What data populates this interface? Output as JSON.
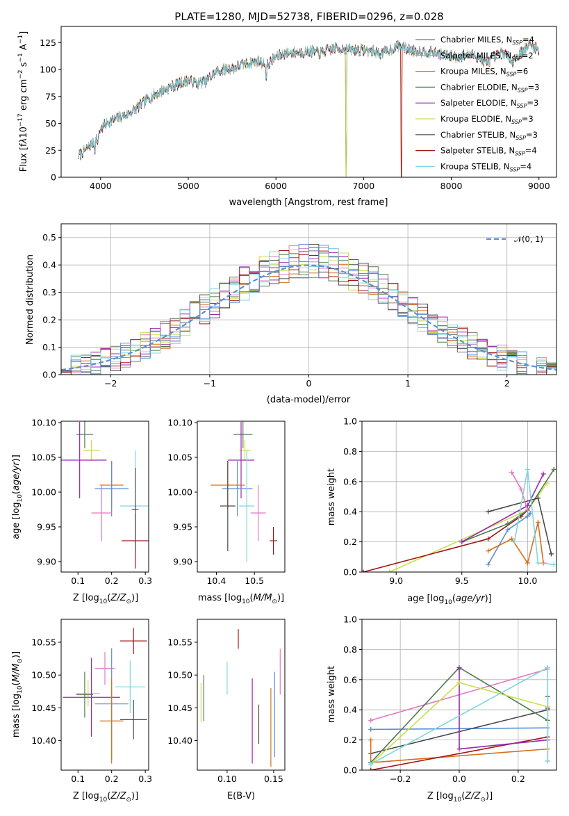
{
  "figure": {
    "title": "PLATE=1280, MJD=52738, FIBERID=0296, z=0.028"
  },
  "chart_data": [
    {
      "id": "spectrum",
      "type": "line",
      "xlabel": "wavelength [Angstrom, rest frame]",
      "ylabel": "Flux [f_λ10^-17 erg cm^-2 s^-1 A^-1]",
      "xlim": [
        3550,
        9200
      ],
      "ylim": [
        0,
        140
      ],
      "xticks": [
        4000,
        5000,
        6000,
        7000,
        8000,
        9000
      ],
      "yticks": [
        0,
        25,
        50,
        75,
        100,
        125
      ],
      "grid": false,
      "legend_position": "top-right",
      "continuum": [
        [
          3750,
          20
        ],
        [
          3850,
          27
        ],
        [
          3950,
          35
        ],
        [
          4000,
          45
        ],
        [
          4100,
          52
        ],
        [
          4200,
          55
        ],
        [
          4300,
          58
        ],
        [
          4400,
          63
        ],
        [
          4500,
          70
        ],
        [
          4600,
          76
        ],
        [
          4700,
          80
        ],
        [
          4800,
          84
        ],
        [
          4900,
          87
        ],
        [
          5000,
          90
        ],
        [
          5100,
          87
        ],
        [
          5200,
          89
        ],
        [
          5300,
          97
        ],
        [
          5400,
          100
        ],
        [
          5500,
          101
        ],
        [
          5600,
          104
        ],
        [
          5700,
          106
        ],
        [
          5800,
          108
        ],
        [
          5900,
          104
        ],
        [
          6000,
          112
        ],
        [
          6100,
          115
        ],
        [
          6200,
          116
        ],
        [
          6300,
          116
        ],
        [
          6400,
          117
        ],
        [
          6500,
          115
        ],
        [
          6600,
          118
        ],
        [
          6700,
          120
        ],
        [
          6800,
          119
        ],
        [
          6900,
          118
        ],
        [
          7000,
          118
        ],
        [
          7100,
          117
        ],
        [
          7200,
          115
        ],
        [
          7300,
          118
        ],
        [
          7400,
          122
        ],
        [
          7500,
          119
        ],
        [
          7600,
          117
        ],
        [
          7700,
          117
        ],
        [
          7800,
          116
        ],
        [
          7900,
          114
        ],
        [
          8000,
          112
        ],
        [
          8100,
          112
        ],
        [
          8200,
          114
        ],
        [
          8300,
          112
        ],
        [
          8400,
          106
        ],
        [
          8500,
          112
        ],
        [
          8600,
          116
        ],
        [
          8700,
          108
        ],
        [
          8800,
          116
        ],
        [
          8900,
          123
        ],
        [
          9000,
          118
        ]
      ],
      "series": [
        {
          "name": "Chabrier MILES, N_SSP=4",
          "color": "#767676",
          "drop_at": null
        },
        {
          "name": "Salpeter MILES, N_SSP=2",
          "color": "#e377c2",
          "drop_at": null
        },
        {
          "name": "Kroupa MILES, N_SSP=6",
          "color": "#d6701a",
          "drop_at": 7430
        },
        {
          "name": "Chabrier ELODIE, N_SSP=3",
          "color": "#4f7a4f",
          "drop_at": 6800
        },
        {
          "name": "Salpeter ELODIE, N_SSP=3",
          "color": "#9b27b0",
          "drop_at": 6800
        },
        {
          "name": "Kroupa ELODIE, N_SSP=3",
          "color": "#c8e04a",
          "drop_at": 6800
        },
        {
          "name": "Chabrier STELIB, N_SSP=3",
          "color": "#4a4a4a",
          "drop_at": null
        },
        {
          "name": "Salpeter STELIB, N_SSP=4",
          "color": "#a31616",
          "drop_at": 7430
        },
        {
          "name": "Kroupa STELIB, N_SSP=4",
          "color": "#7fd6de",
          "drop_at": null
        }
      ]
    },
    {
      "id": "residual-histogram",
      "type": "histogram",
      "xlabel": "(data-model)/error",
      "ylabel": "Normed distribution",
      "xlim": [
        -2.5,
        2.5
      ],
      "ylim": [
        0,
        0.55
      ],
      "xticks": [
        -2,
        -1,
        0,
        1,
        2
      ],
      "yticks": [
        0.0,
        0.1,
        0.2,
        0.3,
        0.4,
        0.5
      ],
      "grid": true,
      "legend_position": "top-right",
      "reference": {
        "name": "𝒩(0, 1)",
        "color": "#5b8fd6"
      },
      "bin_width": 0.1,
      "colors": [
        "#767676",
        "#e377c2",
        "#d6701a",
        "#4f7a4f",
        "#9b27b0",
        "#c8e04a",
        "#4a4a4a",
        "#a31616",
        "#7fd6de",
        "#5b8fd6"
      ]
    },
    {
      "id": "age-vs-Z",
      "type": "errorbar",
      "xlabel": "Z [log10(Z/Z⊙)]",
      "ylabel": "age [log10(age/yr)]",
      "xlim": [
        0.05,
        0.31
      ],
      "ylim": [
        9.885,
        10.102
      ],
      "xticks": [
        0.1,
        0.2,
        0.3
      ],
      "yticks": [
        9.9,
        9.95,
        10.0,
        10.05,
        10.1
      ],
      "points": [
        {
          "x": 0.12,
          "y": 10.083,
          "xe": 0.025,
          "ye": 0.02,
          "color": "#4f7a4f"
        },
        {
          "x": 0.14,
          "y": 10.06,
          "xe": 0.025,
          "ye": 0.015,
          "color": "#c8e04a"
        },
        {
          "x": 0.105,
          "y": 10.046,
          "xe": 0.08,
          "ye": 0.055,
          "color": "#9b27b0"
        },
        {
          "x": 0.2,
          "y": 10.01,
          "xe": 0.035,
          "ye": 0.035,
          "color": "#d6701a"
        },
        {
          "x": 0.2,
          "y": 10.005,
          "xe": 0.05,
          "ye": 0.04,
          "color": "#5b8fd6"
        },
        {
          "x": 0.17,
          "y": 9.97,
          "xe": 0.03,
          "ye": 0.04,
          "color": "#e377c2"
        },
        {
          "x": 0.27,
          "y": 9.98,
          "xe": 0.045,
          "ye": 0.08,
          "color": "#7fd6de"
        },
        {
          "x": 0.27,
          "y": 9.93,
          "xe": 0.04,
          "ye": 0.04,
          "color": "#a31616"
        },
        {
          "x": 0.27,
          "y": 9.975,
          "xe": 0.01,
          "ye": 0.06,
          "color": "#4a4a4a"
        }
      ]
    },
    {
      "id": "age-vs-mass",
      "type": "errorbar",
      "xlabel": "mass [log10(M/M⊙)]",
      "ylabel": "",
      "xlim": [
        10.35,
        10.58
      ],
      "ylim": [
        9.885,
        10.102
      ],
      "xticks": [
        10.4,
        10.5
      ],
      "yticks": [
        9.9,
        9.95,
        10.0,
        10.05,
        10.1
      ],
      "points": [
        {
          "x": 10.47,
          "y": 10.083,
          "xe": 0.025,
          "ye": 0.02,
          "color": "#4f7a4f"
        },
        {
          "x": 10.475,
          "y": 10.06,
          "xe": 0.015,
          "ye": 0.015,
          "color": "#c8e04a"
        },
        {
          "x": 10.465,
          "y": 10.046,
          "xe": 0.035,
          "ye": 0.055,
          "color": "#9b27b0"
        },
        {
          "x": 10.43,
          "y": 10.01,
          "xe": 0.045,
          "ye": 0.035,
          "color": "#d6701a"
        },
        {
          "x": 10.455,
          "y": 10.005,
          "xe": 0.04,
          "ye": 0.04,
          "color": "#5b8fd6"
        },
        {
          "x": 10.51,
          "y": 9.97,
          "xe": 0.02,
          "ye": 0.04,
          "color": "#e377c2"
        },
        {
          "x": 10.48,
          "y": 9.98,
          "xe": 0.02,
          "ye": 0.08,
          "color": "#7fd6de"
        },
        {
          "x": 10.55,
          "y": 9.93,
          "xe": 0.01,
          "ye": 0.02,
          "color": "#a31616"
        },
        {
          "x": 10.43,
          "y": 9.98,
          "xe": 0.02,
          "ye": 0.065,
          "color": "#4a4a4a"
        }
      ]
    },
    {
      "id": "mass-weight-vs-age",
      "type": "line",
      "xlabel": "age [log10(age/yr)]",
      "ylabel": "mass weight",
      "xlim": [
        8.74,
        10.22
      ],
      "ylim": [
        0,
        1.0
      ],
      "xticks": [
        9.0,
        9.5,
        10.0
      ],
      "yticks": [
        0.0,
        0.2,
        0.4,
        0.6,
        0.8,
        1.0
      ],
      "grid": true,
      "series": [
        {
          "color": "#c8e04a",
          "points": [
            [
              8.95,
              0.0
            ],
            [
              10.0,
              0.41
            ],
            [
              10.15,
              0.59
            ]
          ]
        },
        {
          "color": "#a31616",
          "points": [
            [
              8.75,
              0.0
            ],
            [
              9.7,
              0.22
            ],
            [
              9.95,
              0.37
            ],
            [
              10.0,
              0.41
            ]
          ]
        },
        {
          "color": "#4f7a4f",
          "points": [
            [
              9.5,
              0.2
            ],
            [
              9.85,
              0.32
            ],
            [
              10.0,
              0.41
            ],
            [
              10.2,
              0.68
            ]
          ]
        },
        {
          "color": "#9b27b0",
          "points": [
            [
              9.5,
              0.2
            ],
            [
              10.0,
              0.44
            ],
            [
              10.12,
              0.65
            ]
          ]
        },
        {
          "color": "#4a4a4a",
          "points": [
            [
              9.7,
              0.4
            ],
            [
              10.08,
              0.49
            ],
            [
              10.18,
              0.12
            ]
          ]
        },
        {
          "color": "#5b8fd6",
          "points": [
            [
              9.7,
              0.05
            ],
            [
              9.85,
              0.28
            ],
            [
              10.0,
              0.37
            ],
            [
              10.02,
              0.39
            ]
          ]
        },
        {
          "color": "#d6701a",
          "points": [
            [
              9.7,
              0.14
            ],
            [
              9.88,
              0.22
            ],
            [
              10.0,
              0.06
            ],
            [
              10.08,
              0.33
            ],
            [
              10.12,
              0.06
            ]
          ]
        },
        {
          "color": "#e377c2",
          "points": [
            [
              9.88,
              0.66
            ],
            [
              9.95,
              0.55
            ],
            [
              10.0,
              0.41
            ]
          ]
        },
        {
          "color": "#7fd6de",
          "points": [
            [
              9.9,
              0.2
            ],
            [
              10.0,
              0.68
            ],
            [
              10.08,
              0.06
            ],
            [
              10.2,
              0.05
            ]
          ]
        }
      ]
    },
    {
      "id": "mass-vs-Z",
      "type": "errorbar",
      "xlabel": "Z [log10(Z/Z⊙)]",
      "ylabel": "mass [log10(M/M⊙)]",
      "xlim": [
        0.05,
        0.31
      ],
      "ylim": [
        10.355,
        10.585
      ],
      "xticks": [
        0.1,
        0.2,
        0.3
      ],
      "yticks": [
        10.4,
        10.45,
        10.5,
        10.55
      ],
      "points": [
        {
          "x": 0.265,
          "y": 10.552,
          "xe": 0.04,
          "ye": 0.02,
          "color": "#a31616"
        },
        {
          "x": 0.18,
          "y": 10.51,
          "xe": 0.03,
          "ye": 0.025,
          "color": "#e377c2"
        },
        {
          "x": 0.255,
          "y": 10.482,
          "xe": 0.045,
          "ye": 0.04,
          "color": "#7fd6de"
        },
        {
          "x": 0.13,
          "y": 10.472,
          "xe": 0.035,
          "ye": 0.02,
          "color": "#c8e04a"
        },
        {
          "x": 0.12,
          "y": 10.47,
          "xe": 0.025,
          "ye": 0.035,
          "color": "#4f7a4f"
        },
        {
          "x": 0.14,
          "y": 10.466,
          "xe": 0.085,
          "ye": 0.06,
          "color": "#9b27b0"
        },
        {
          "x": 0.2,
          "y": 10.456,
          "xe": 0.05,
          "ye": 0.085,
          "color": "#5b8fd6"
        },
        {
          "x": 0.2,
          "y": 10.43,
          "xe": 0.035,
          "ye": 0.065,
          "color": "#d6701a"
        },
        {
          "x": 0.265,
          "y": 10.432,
          "xe": 0.04,
          "ye": 0.03,
          "color": "#4a4a4a"
        }
      ]
    },
    {
      "id": "mass-vs-EBV",
      "type": "errorbar",
      "xlabel": "E(B-V)",
      "ylabel": "",
      "xlim": [
        0.068,
        0.162
      ],
      "ylim": [
        10.355,
        10.585
      ],
      "xticks": [
        0.1,
        0.15
      ],
      "yticks": [
        10.4,
        10.45,
        10.5,
        10.55
      ],
      "points": [
        {
          "x": 0.112,
          "y": 10.555,
          "xe": 0,
          "ye": 0.015,
          "color": "#a31616"
        },
        {
          "x": 0.157,
          "y": 10.505,
          "xe": 0,
          "ye": 0.035,
          "color": "#e377c2"
        },
        {
          "x": 0.1,
          "y": 10.495,
          "xe": 0,
          "ye": 0.025,
          "color": "#7fd6de"
        },
        {
          "x": 0.072,
          "y": 10.458,
          "xe": 0,
          "ye": 0.03,
          "color": "#c8e04a"
        },
        {
          "x": 0.075,
          "y": 10.465,
          "xe": 0,
          "ye": 0.035,
          "color": "#4f7a4f"
        },
        {
          "x": 0.127,
          "y": 10.43,
          "xe": 0,
          "ye": 0.065,
          "color": "#9b27b0"
        },
        {
          "x": 0.151,
          "y": 10.44,
          "xe": 0,
          "ye": 0.065,
          "color": "#5b8fd6"
        },
        {
          "x": 0.147,
          "y": 10.42,
          "xe": 0,
          "ye": 0.06,
          "color": "#d6701a"
        },
        {
          "x": 0.134,
          "y": 10.425,
          "xe": 0,
          "ye": 0.03,
          "color": "#4a4a4a"
        }
      ]
    },
    {
      "id": "mass-weight-vs-Z",
      "type": "line",
      "xlabel": "Z [log10(Z/Z⊙)]",
      "ylabel": "mass weight",
      "xlim": [
        -0.33,
        0.33
      ],
      "ylim": [
        0,
        1.0
      ],
      "xticks": [
        -0.2,
        0.0,
        0.2
      ],
      "yticks": [
        0.0,
        0.2,
        0.4,
        0.6,
        0.8,
        1.0
      ],
      "grid": true,
      "series": [
        {
          "color": "#e377c2",
          "points": [
            [
              -0.3,
              0.33
            ],
            [
              0.3,
              0.67
            ]
          ]
        },
        {
          "color": "#5b8fd6",
          "points": [
            [
              -0.3,
              0.27
            ],
            [
              0.3,
              0.28
            ]
          ]
        },
        {
          "color": "#4a4a4a",
          "points": [
            [
              -0.3,
              0.11
            ],
            [
              0.3,
              0.4
            ],
            [
              0.3,
              0.49
            ]
          ]
        },
        {
          "color": "#d6701a",
          "points": [
            [
              -0.3,
              0.2
            ],
            [
              -0.3,
              0.05
            ],
            [
              0.3,
              0.14
            ],
            [
              0.3,
              0.06
            ]
          ]
        },
        {
          "color": "#a31616",
          "points": [
            [
              -0.3,
              0.0
            ],
            [
              0.3,
              0.22
            ],
            [
              0.3,
              0.41
            ]
          ]
        },
        {
          "color": "#4f7a4f",
          "points": [
            [
              -0.3,
              0.05
            ],
            [
              0.0,
              0.68
            ],
            [
              0.3,
              0.33
            ]
          ]
        },
        {
          "color": "#9b27b0",
          "points": [
            [
              0.0,
              0.67
            ],
            [
              0.0,
              0.14
            ],
            [
              0.3,
              0.2
            ]
          ]
        },
        {
          "color": "#c8e04a",
          "points": [
            [
              -0.3,
              0.04
            ],
            [
              0.0,
              0.58
            ],
            [
              0.3,
              0.42
            ]
          ]
        },
        {
          "color": "#7fd6de",
          "points": [
            [
              -0.3,
              0.04
            ],
            [
              0.3,
              0.68
            ],
            [
              0.3,
              0.06
            ]
          ]
        }
      ]
    }
  ]
}
